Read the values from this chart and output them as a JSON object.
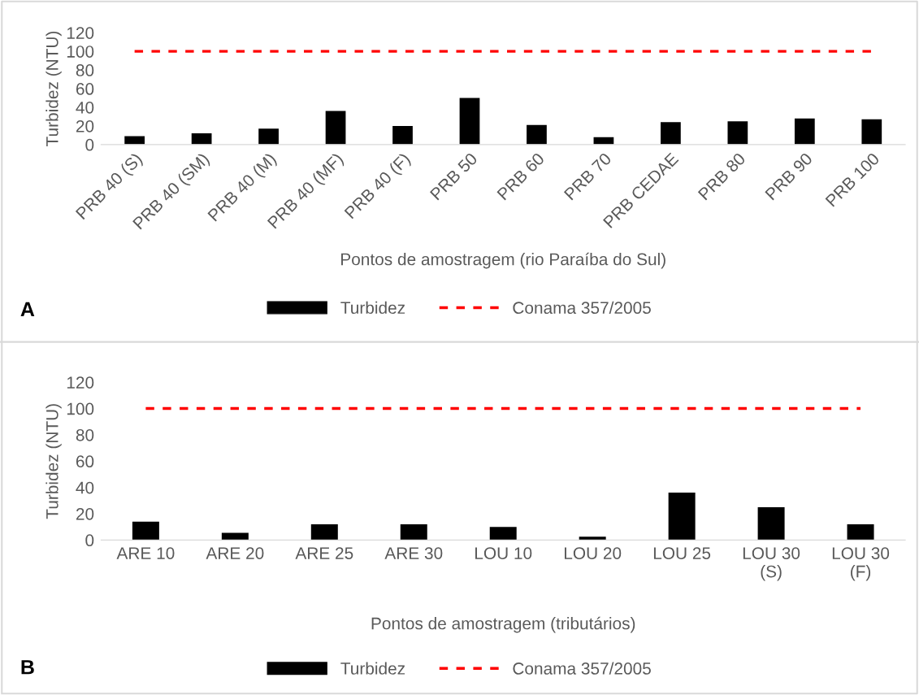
{
  "chart_data": [
    {
      "type": "bar",
      "xlabel": "Pontos de amostragem (rio Paraíba do Sul)",
      "ylabel": "Turbidez (NTU)",
      "categories": [
        "PRB 40 (S)",
        "PRB 40 (SM)",
        "PRB 40 (M)",
        "PRB 40 (MF)",
        "PRB 40 (F)",
        "PRB 50",
        "PRB 60",
        "PRB 70",
        "PRB CEDAE",
        "PRB 80",
        "PRB 90",
        "PRB 100"
      ],
      "series": [
        {
          "name": "Turbidez",
          "color": "#000000",
          "values": [
            9,
            12,
            17,
            36,
            20,
            50,
            21,
            8,
            24,
            25,
            28,
            27
          ]
        },
        {
          "name": "Conama 357/2005",
          "type": "line",
          "color": "#ff0000",
          "line_style": "dashed",
          "values": [
            100,
            100,
            100,
            100,
            100,
            100,
            100,
            100,
            100,
            100,
            100,
            100
          ]
        }
      ],
      "ylim": [
        0,
        120
      ],
      "yticks": [
        0,
        20,
        40,
        60,
        80,
        100,
        120
      ],
      "grid": false,
      "legend": "bottom",
      "annotations": [
        "A"
      ]
    },
    {
      "type": "bar",
      "xlabel": "Pontos de amostragem (tributários)",
      "ylabel": "Turbidez (NTU)",
      "categories": [
        "ARE 10",
        "ARE 20",
        "ARE 25",
        "ARE 30",
        "LOU 10",
        "LOU 20",
        "LOU 25",
        "LOU 30 (S)",
        "LOU 30 (F)"
      ],
      "series": [
        {
          "name": "Turbidez",
          "color": "#000000",
          "values": [
            14,
            5.5,
            12,
            12,
            10,
            2.5,
            36,
            25,
            12
          ]
        },
        {
          "name": "Conama 357/2005",
          "type": "line",
          "color": "#ff0000",
          "line_style": "dashed",
          "values": [
            100,
            100,
            100,
            100,
            100,
            100,
            100,
            100,
            100
          ]
        }
      ],
      "ylim": [
        0,
        120
      ],
      "yticks": [
        0,
        20,
        40,
        60,
        80,
        100,
        120
      ],
      "grid": false,
      "legend": "bottom",
      "annotations": [
        "B"
      ]
    }
  ]
}
